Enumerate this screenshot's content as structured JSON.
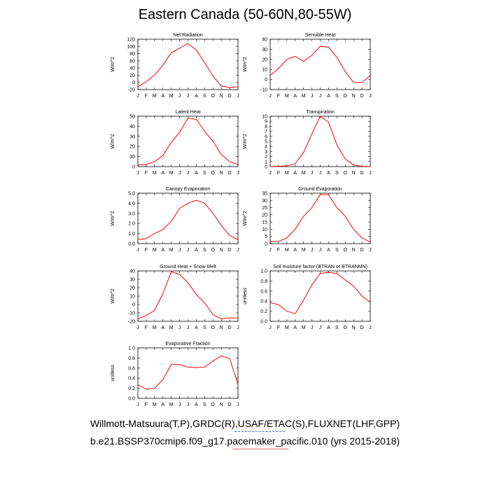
{
  "title": "Eastern Canada (50-60N,80-55W)",
  "footer": {
    "line1": "Willmott-Matsuura(T,P),GRDC(R),USAF/ETAC(S),FLUXNET(LHF,GPP)",
    "line2": "b.e21.BSSP370cmip6.f09_g17.pacemaker_pacific.010 (yrs 2015-2018)"
  },
  "colors": {
    "series": "#ff0000",
    "axis": "#000000"
  },
  "chart_data": [
    {
      "type": "line",
      "title": "Net Radiation",
      "ylabel": "W/m^2",
      "ylim": [
        -20,
        120
      ],
      "yticks": [
        120,
        100,
        80,
        60,
        40,
        20,
        0,
        -20
      ],
      "x": [
        "J",
        "F",
        "M",
        "A",
        "M",
        "J",
        "J",
        "A",
        "S",
        "O",
        "N",
        "D",
        "J"
      ],
      "values": [
        -12,
        2,
        20,
        48,
        82,
        95,
        108,
        90,
        55,
        18,
        -10,
        -14,
        -12
      ]
    },
    {
      "type": "line",
      "title": "Sensible Heat",
      "ylabel": "W/m^2",
      "ylim": [
        -10,
        40
      ],
      "yticks": [
        40,
        30,
        20,
        10,
        0,
        -10
      ],
      "x": [
        "J",
        "F",
        "M",
        "A",
        "M",
        "J",
        "J",
        "A",
        "S",
        "O",
        "N",
        "D",
        "J"
      ],
      "values": [
        4,
        11,
        20,
        23,
        18,
        24,
        33,
        32,
        22,
        8,
        -3,
        -3,
        4
      ]
    },
    {
      "type": "line",
      "title": "Latent Heat",
      "ylabel": "W/m^2",
      "ylim": [
        0,
        50
      ],
      "yticks": [
        50,
        40,
        30,
        20,
        10,
        0
      ],
      "x": [
        "J",
        "F",
        "M",
        "A",
        "M",
        "J",
        "J",
        "A",
        "S",
        "O",
        "N",
        "D",
        "J"
      ],
      "values": [
        2,
        2,
        5,
        11,
        24,
        34,
        48,
        47,
        35,
        25,
        12,
        5,
        2
      ]
    },
    {
      "type": "line",
      "title": "Transpiration",
      "ylabel": "W/m^2",
      "ylim": [
        0,
        10
      ],
      "yticks": [
        10,
        9,
        8,
        7,
        6,
        5,
        4,
        3,
        2,
        1,
        0
      ],
      "x": [
        "J",
        "F",
        "M",
        "A",
        "M",
        "J",
        "J",
        "A",
        "S",
        "O",
        "N",
        "D",
        "J"
      ],
      "values": [
        0,
        0.05,
        0.15,
        0.6,
        2.8,
        6.5,
        10,
        8.8,
        4.3,
        1.5,
        0.3,
        0.05,
        0
      ]
    },
    {
      "type": "line",
      "title": "Canopy Evaporation",
      "ylabel": "W/m^2",
      "ylim": [
        0,
        5
      ],
      "yticks": [
        "5.0",
        "4.0",
        "3.0",
        "2.0",
        "1.0",
        "0.0"
      ],
      "x": [
        "J",
        "F",
        "M",
        "A",
        "M",
        "J",
        "J",
        "A",
        "S",
        "O",
        "N",
        "D",
        "J"
      ],
      "values": [
        0.4,
        0.5,
        1.0,
        1.4,
        2.2,
        3.5,
        4.0,
        4.3,
        4.0,
        3.0,
        1.8,
        0.8,
        0.4
      ]
    },
    {
      "type": "line",
      "title": "Ground Evaporation",
      "ylabel": "W/m^2",
      "ylim": [
        0,
        35
      ],
      "yticks": [
        35,
        30,
        25,
        20,
        15,
        10,
        5,
        0
      ],
      "x": [
        "J",
        "F",
        "M",
        "A",
        "M",
        "J",
        "J",
        "A",
        "S",
        "O",
        "N",
        "D",
        "J"
      ],
      "values": [
        1.5,
        1.5,
        4,
        10,
        19,
        25,
        34,
        34,
        25,
        19,
        10,
        4,
        1
      ]
    },
    {
      "type": "line",
      "title": "Ground Heat + Snow Melt",
      "ylabel": "W/m^2",
      "ylim": [
        -20,
        40
      ],
      "yticks": [
        40,
        30,
        20,
        10,
        0,
        -10,
        -20
      ],
      "x": [
        "J",
        "F",
        "M",
        "A",
        "M",
        "J",
        "J",
        "A",
        "S",
        "O",
        "N",
        "D",
        "J"
      ],
      "values": [
        -17,
        -13,
        -7,
        13,
        39,
        36,
        26,
        12,
        2,
        -12,
        -17,
        -16,
        -16
      ]
    },
    {
      "type": "line",
      "title": "Soil moisture factor (BTRAN or BTRANMN)",
      "ylabel": "unitless",
      "ylim": [
        0,
        1
      ],
      "yticks": [
        "1.0",
        "0.8",
        "0.6",
        "0.4",
        "0.2",
        "0.0"
      ],
      "x": [
        "J",
        "F",
        "M",
        "A",
        "M",
        "J",
        "J",
        "A",
        "S",
        "O",
        "N",
        "D",
        "J"
      ],
      "values": [
        0.37,
        0.33,
        0.2,
        0.15,
        0.42,
        0.72,
        0.95,
        0.97,
        0.95,
        0.82,
        0.7,
        0.5,
        0.38
      ]
    },
    {
      "type": "line",
      "title": "Evaporative Fraction",
      "ylabel": "unitless",
      "ylim": [
        0,
        1
      ],
      "yticks": [
        "1.0",
        "0.8",
        "0.6",
        "0.4",
        "0.2",
        "0.0"
      ],
      "x": [
        "J",
        "F",
        "M",
        "A",
        "M",
        "J",
        "J",
        "A",
        "S",
        "O",
        "N",
        "D",
        "J"
      ],
      "values": [
        0.27,
        0.18,
        0.2,
        0.37,
        0.67,
        0.67,
        0.62,
        0.61,
        0.62,
        0.74,
        0.84,
        0.79,
        0.28
      ]
    }
  ]
}
